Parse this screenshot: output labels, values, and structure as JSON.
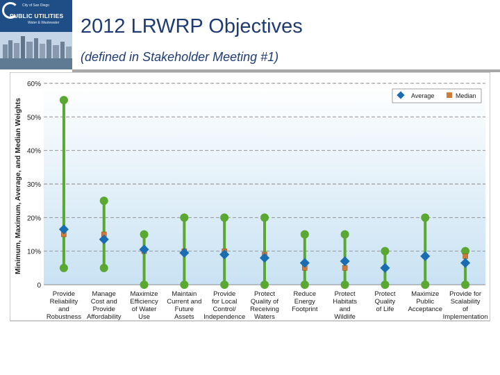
{
  "header": {
    "title": "2012 LRWRP Objectives",
    "subtitle": "(defined in Stakeholder Meeting #1)"
  },
  "logo": {
    "city_text": "City of San Diego",
    "name_text": "PUBLIC UTILITIES",
    "sub_text": "Water & Wastewater"
  },
  "colors": {
    "range_line": "#5aa832",
    "average_marker": "#1b6db1",
    "median_marker": "#d07a3a",
    "plot_background_top": "#ffffff",
    "plot_background_bottom": "#c9e2f3",
    "gridline": "#888888"
  },
  "chart_data": {
    "type": "scatter",
    "ylabel": "Minimum, Maximum, Average, and Median Weights",
    "ylim": [
      0,
      60
    ],
    "y_ticks": [
      "0",
      "10%",
      "20%",
      "30%",
      "40%",
      "50%",
      "60%"
    ],
    "grid": "dashed horizontal",
    "legend_position": "top-right",
    "legend": [
      "Average",
      "Median"
    ],
    "categories": [
      [
        "Provide",
        "Reliability",
        "and",
        "Robustness"
      ],
      [
        "Manage",
        "Cost and",
        "Provide",
        "Affordability"
      ],
      [
        "Maximize",
        "Efficiency",
        "of Water",
        "Use"
      ],
      [
        "Maintain",
        "Current and",
        "Future",
        "Assets"
      ],
      [
        "Provide",
        "for Local",
        "Control/",
        "Independence"
      ],
      [
        "Protect",
        "Quality of",
        "Receiving",
        "Waters"
      ],
      [
        "Reduce",
        "Energy",
        "Footprint"
      ],
      [
        "Protect",
        "Habitats",
        "and",
        "Wildlife"
      ],
      [
        "Protect",
        "Quality",
        "of Life"
      ],
      [
        "Maximize",
        "Public",
        "Acceptance"
      ],
      [
        "Provide for",
        "Scalability",
        "of",
        "Implementation"
      ]
    ],
    "series": [
      {
        "name": "Minimum",
        "values": [
          5,
          5,
          0,
          0,
          0,
          0,
          0,
          0,
          0,
          0,
          0
        ]
      },
      {
        "name": "Maximum",
        "values": [
          55,
          25,
          15,
          20,
          20,
          20,
          15,
          15,
          10,
          20,
          10
        ]
      },
      {
        "name": "Average",
        "values": [
          16.5,
          13.5,
          10.5,
          9.5,
          9,
          8,
          6.5,
          7,
          5,
          8.5,
          6.5
        ]
      },
      {
        "name": "Median",
        "values": [
          15,
          15,
          10,
          10,
          10,
          9,
          5,
          5,
          5,
          8.5,
          8.5
        ]
      }
    ]
  }
}
